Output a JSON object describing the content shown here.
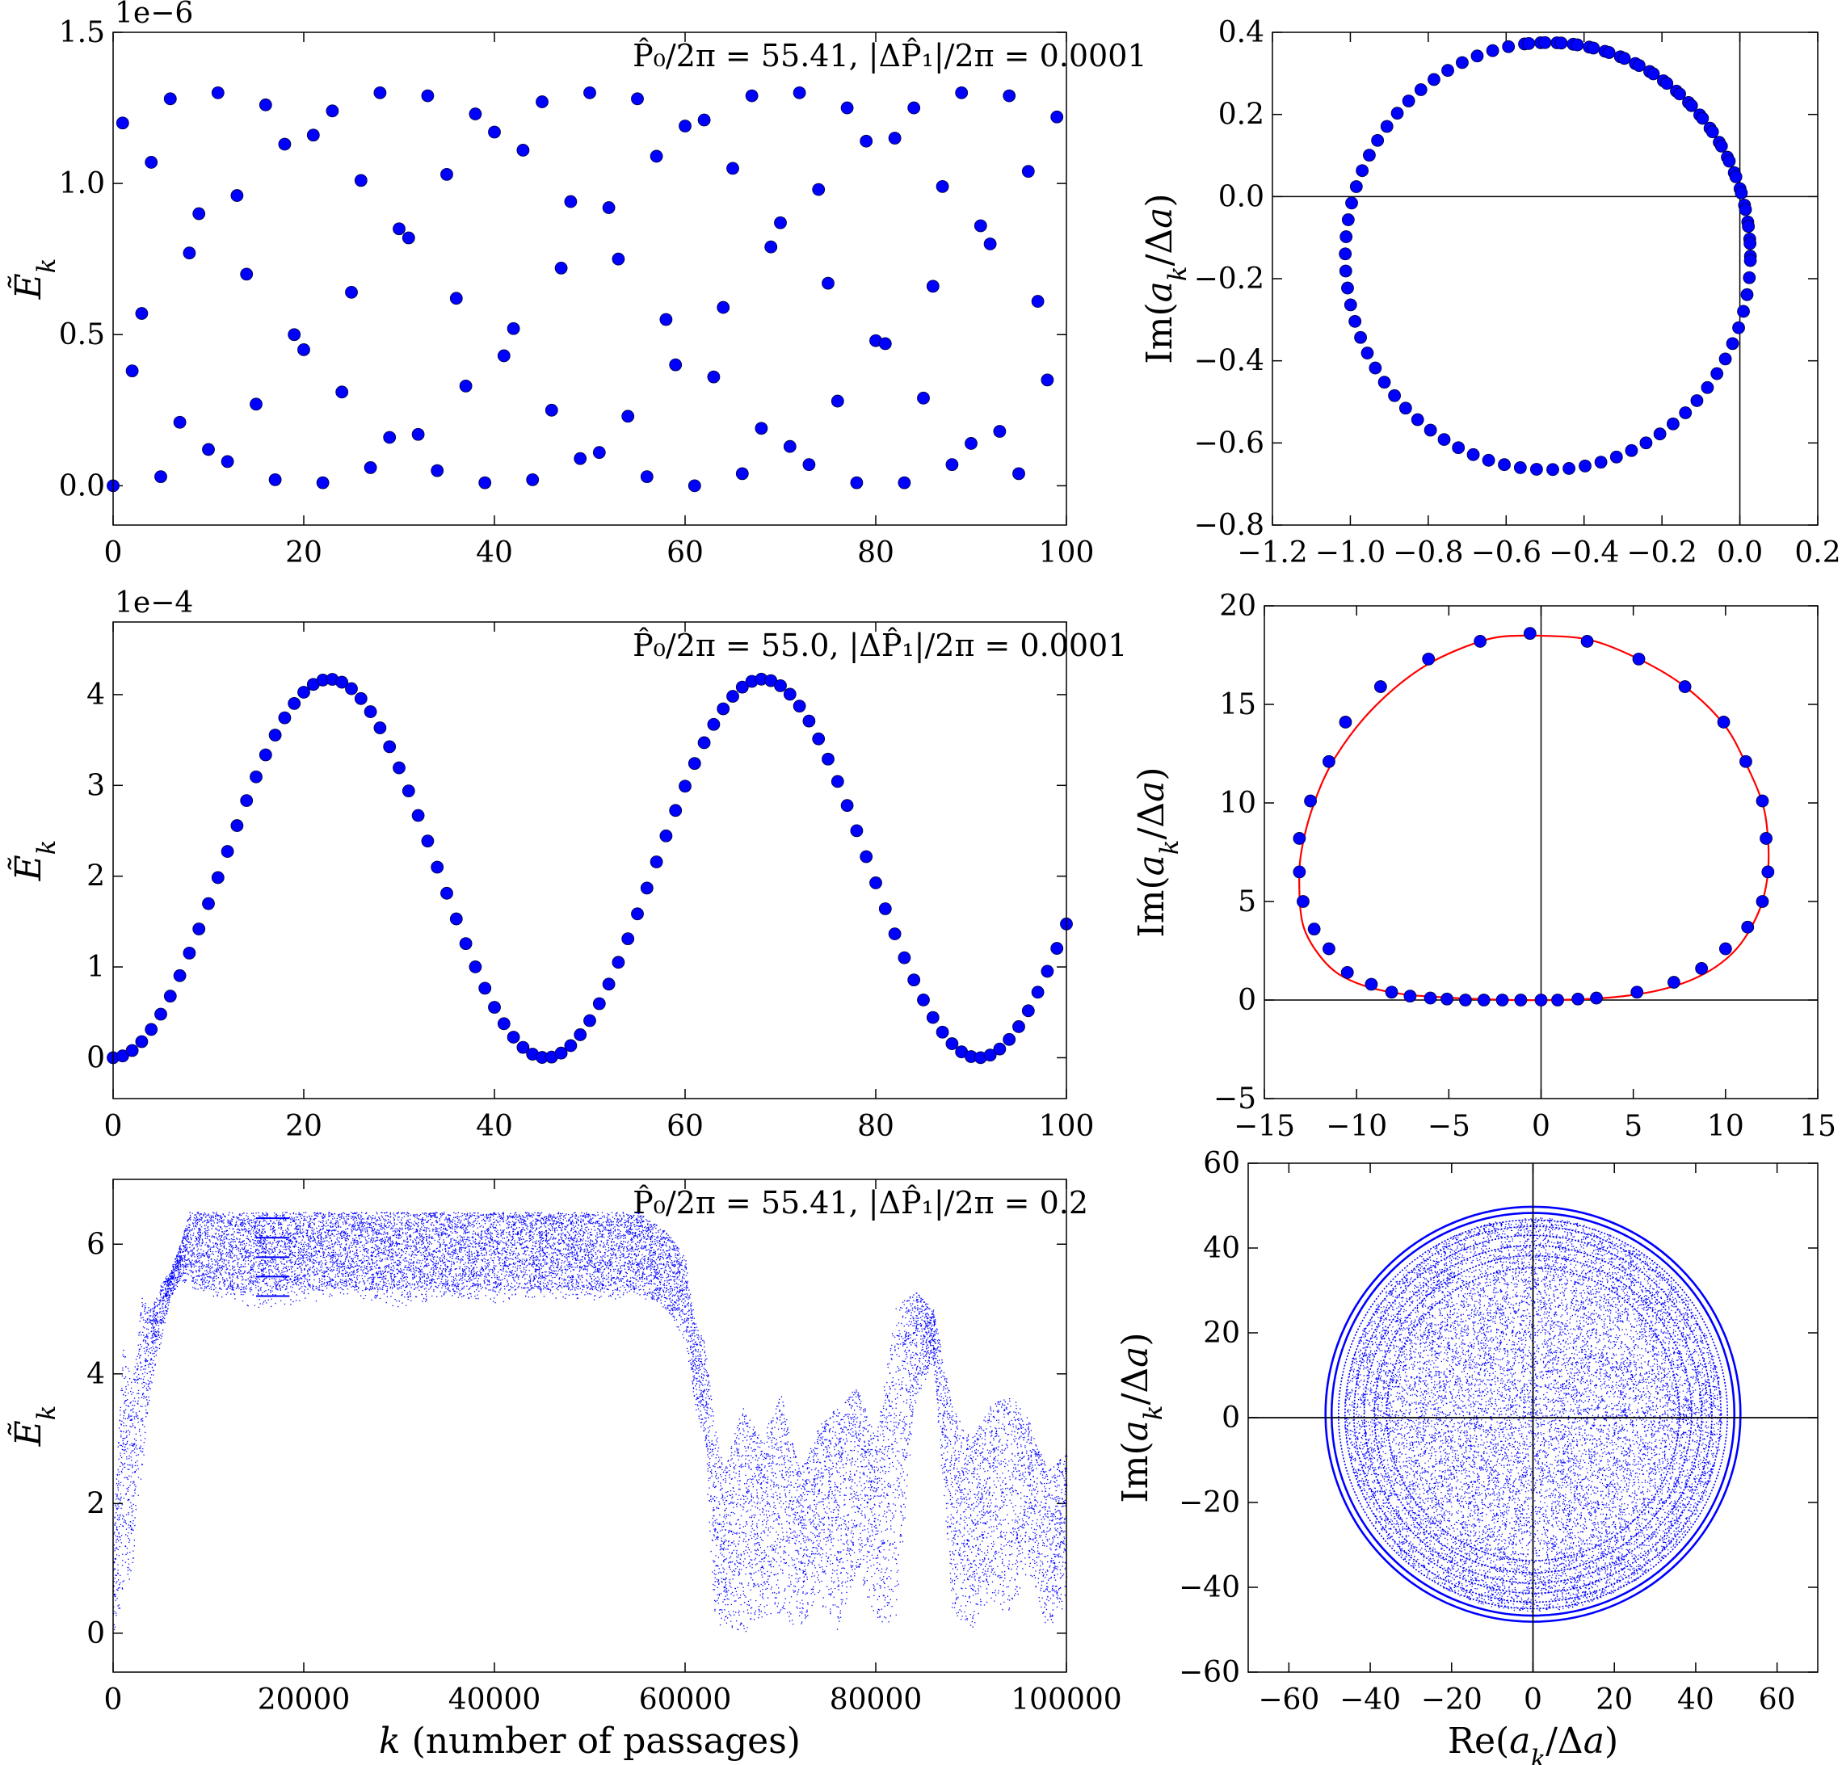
{
  "colors": {
    "points": "#0000ff",
    "curve": "#ff0000",
    "axes": "#000000",
    "background": "#ffffff"
  },
  "chart_data": [
    {
      "id": "energy-top",
      "type": "scatter",
      "annotation": "P̂₀/2π = 55.41, |ΔP̂₁|/2π = 0.0001",
      "offset_text": "1e−6",
      "xlabel": "",
      "ylabel": "Ẽ_k",
      "xlim": [
        0,
        100
      ],
      "ylim": [
        -0.13,
        1.5
      ],
      "xticks": [
        0,
        20,
        40,
        60,
        80,
        100
      ],
      "xtick_labels": [
        "0",
        "20",
        "40",
        "60",
        "80",
        "100"
      ],
      "yticks": [
        0,
        0.5,
        1.0,
        1.5
      ],
      "ytick_labels": [
        "0.0",
        "0.5",
        "1.0",
        "1.5"
      ],
      "series": [
        {
          "style": "dots",
          "x": [
            0,
            1,
            2,
            3,
            4,
            5,
            6,
            7,
            8,
            9,
            10,
            11,
            12,
            13,
            14,
            15,
            16,
            17,
            18,
            19,
            20,
            21,
            22,
            23,
            24,
            25,
            26,
            27,
            28,
            29,
            30,
            31,
            32,
            33,
            34,
            35,
            36,
            37,
            38,
            39,
            40,
            41,
            42,
            43,
            44,
            45,
            46,
            47,
            48,
            49,
            50,
            51,
            52,
            53,
            54,
            55,
            56,
            57,
            58,
            59,
            60,
            61,
            62,
            63,
            64,
            65,
            66,
            67,
            68,
            69,
            70,
            71,
            72,
            73,
            74,
            75,
            76,
            77,
            78,
            79,
            80,
            81,
            82,
            83,
            84,
            85,
            86,
            87,
            88,
            89,
            90,
            91,
            92,
            93,
            94,
            95,
            96,
            97,
            98,
            99
          ],
          "y": [
            0.0,
            1.2,
            0.38,
            0.57,
            1.07,
            0.03,
            1.28,
            0.21,
            0.77,
            0.9,
            0.12,
            1.3,
            0.08,
            0.96,
            0.7,
            0.27,
            1.26,
            0.02,
            1.13,
            0.5,
            0.45,
            1.16,
            0.01,
            1.24,
            0.31,
            0.64,
            1.01,
            0.06,
            1.3,
            0.16,
            0.85,
            0.82,
            0.17,
            1.29,
            0.05,
            1.03,
            0.62,
            0.33,
            1.23,
            0.01,
            1.17,
            0.43,
            0.52,
            1.11,
            0.02,
            1.27,
            0.25,
            0.72,
            0.94,
            0.09,
            1.3,
            0.11,
            0.92,
            0.75,
            0.23,
            1.28,
            0.03,
            1.09,
            0.55,
            0.4,
            1.19,
            0.0,
            1.21,
            0.36,
            0.59,
            1.05,
            0.04,
            1.29,
            0.19,
            0.79,
            0.87,
            0.13,
            1.3,
            0.07,
            0.98,
            0.67,
            0.28,
            1.25,
            0.01,
            1.14,
            0.48,
            0.47,
            1.15,
            0.01,
            1.25,
            0.29,
            0.66,
            0.99,
            0.07,
            1.3,
            0.14,
            0.86,
            0.8,
            0.18,
            1.29,
            0.04,
            1.04,
            0.61,
            0.35,
            1.22
          ]
        }
      ]
    },
    {
      "id": "phase-top",
      "type": "scatter",
      "xlabel": "",
      "ylabel": "Im(a_k/Δa)",
      "xlim": [
        -1.2,
        0.2
      ],
      "ylim": [
        -0.8,
        0.4
      ],
      "xticks": [
        -1.2,
        -1.0,
        -0.8,
        -0.6,
        -0.4,
        -0.2,
        0.0,
        0.2
      ],
      "xtick_labels": [
        "−1.2",
        "−1.0",
        "−0.8",
        "−0.6",
        "−0.4",
        "−0.2",
        "0.0",
        "0.2"
      ],
      "yticks": [
        -0.8,
        -0.6,
        -0.4,
        -0.2,
        0.0,
        0.2,
        0.4
      ],
      "ytick_labels": [
        "−0.8",
        "−0.6",
        "−0.4",
        "−0.2",
        "0.0",
        "0.2",
        "0.4"
      ],
      "circle": {
        "center": [
          -0.493,
          -0.145
        ],
        "radius": 0.52,
        "count": 100,
        "step_deg": 4.6
      }
    },
    {
      "id": "energy-middle",
      "type": "scatter",
      "annotation": "P̂₀/2π = 55.0, |ΔP̂₁|/2π = 0.0001",
      "offset_text": "1e−4",
      "xlabel": "",
      "ylabel": "Ẽ_k",
      "xlim": [
        0,
        100
      ],
      "ylim": [
        -0.45,
        4.8
      ],
      "xticks": [
        0,
        20,
        40,
        60,
        80,
        100
      ],
      "xtick_labels": [
        "0",
        "20",
        "40",
        "60",
        "80",
        "100"
      ],
      "yticks": [
        0,
        1,
        2,
        3,
        4
      ],
      "ytick_labels": [
        "0",
        "1",
        "2",
        "3",
        "4"
      ],
      "model": {
        "amplitude": 4.17,
        "period": 45.4,
        "count": 101
      }
    },
    {
      "id": "phase-middle",
      "type": "scatter",
      "xlabel": "",
      "ylabel": "Im(a_k/Δa)",
      "xlim": [
        -15,
        15
      ],
      "ylim": [
        -5,
        20
      ],
      "xticks": [
        -15,
        -10,
        -5,
        0,
        5,
        10,
        15
      ],
      "xtick_labels": [
        "−15",
        "−10",
        "−5",
        "0",
        "5",
        "10",
        "15"
      ],
      "yticks": [
        -5,
        0,
        5,
        10,
        15,
        20
      ],
      "ytick_labels": [
        "−5",
        "0",
        "5",
        "10",
        "15",
        "20"
      ],
      "curve": {
        "x": [
          -0.5,
          2.5,
          5.3,
          7.8,
          9.9,
          11.1,
          12.0,
          12.3,
          12.3,
          12.0,
          11.4,
          10.6,
          9.5,
          8.1,
          6.4,
          4.5,
          2.5,
          0.5,
          -1.5,
          -3.5,
          -5.5,
          -7.5,
          -9.5,
          -11.1,
          -12.2,
          -12.9,
          -13.1,
          -13.0,
          -12.3,
          -11.1,
          -9.0,
          -6.2,
          -2.9,
          -0.5
        ],
        "y": [
          18.5,
          18.3,
          17.3,
          15.9,
          14.0,
          12.0,
          10.0,
          8.2,
          6.5,
          5.0,
          3.7,
          2.6,
          1.7,
          1.0,
          0.5,
          0.2,
          0.05,
          0.0,
          0.0,
          0.05,
          0.15,
          0.3,
          0.7,
          1.4,
          2.5,
          3.8,
          5.5,
          7.5,
          10.0,
          12.4,
          14.9,
          17.0,
          18.3,
          18.5
        ]
      },
      "points": {
        "x": [
          -0.6,
          2.5,
          5.3,
          7.8,
          9.9,
          11.1,
          12.0,
          12.2,
          12.3,
          12.0,
          11.2,
          10.0,
          8.7,
          7.2,
          5.2,
          3.0,
          2.0,
          0.9,
          0.0,
          -1.1,
          -2.1,
          -3.1,
          -4.1,
          -5.1,
          -6.0,
          -7.1,
          -8.1,
          -9.2,
          -10.5,
          -11.5,
          -12.3,
          -12.9,
          -13.1,
          -13.1,
          -12.5,
          -11.5,
          -10.6,
          -8.7,
          -6.1,
          -3.3
        ],
        "y": [
          18.6,
          18.2,
          17.3,
          15.9,
          14.1,
          12.1,
          10.1,
          8.2,
          6.5,
          5.0,
          3.7,
          2.6,
          1.6,
          0.9,
          0.4,
          0.1,
          0.05,
          0.0,
          0.0,
          0.0,
          0.0,
          0.0,
          0.0,
          0.05,
          0.1,
          0.2,
          0.4,
          0.8,
          1.4,
          2.6,
          3.6,
          5.0,
          6.5,
          8.2,
          10.1,
          12.1,
          14.1,
          15.9,
          17.3,
          18.2
        ]
      }
    },
    {
      "id": "energy-bottom",
      "type": "scatter",
      "annotation": "P̂₀/2π = 55.41, |ΔP̂₁|/2π = 0.2",
      "xlabel": "k (number of passages)",
      "ylabel": "Ẽ_k",
      "xlim": [
        0,
        100000
      ],
      "ylim": [
        -0.6,
        7.0
      ],
      "xticks": [
        0,
        20000,
        40000,
        60000,
        80000,
        100000
      ],
      "xtick_labels": [
        "0",
        "20000",
        "40000",
        "60000",
        "80000",
        "100000"
      ],
      "yticks": [
        0,
        2,
        4,
        6
      ],
      "ytick_labels": [
        "0",
        "2",
        "4",
        "6"
      ],
      "envelope": {
        "x": [
          0,
          1000,
          2000,
          3000,
          4000,
          5000,
          6000,
          7000,
          8000,
          10000,
          15000,
          20000,
          25000,
          30000,
          35000,
          40000,
          45000,
          50000,
          55000,
          58000,
          60000,
          61000,
          62000,
          63000,
          64000,
          66000,
          68000,
          70000,
          72000,
          74000,
          76000,
          78000,
          80000,
          82000,
          84000,
          86000,
          88000,
          90000,
          92000,
          94000,
          96000,
          98000,
          100000
        ],
        "low": [
          0.0,
          0.5,
          1.0,
          2.5,
          3.8,
          4.5,
          5.2,
          5.4,
          5.4,
          5.2,
          5.0,
          5.1,
          5.2,
          5.0,
          5.2,
          5.1,
          5.2,
          5.1,
          5.2,
          5.0,
          4.5,
          3.5,
          3.0,
          0.3,
          0.0,
          0.0,
          0.2,
          0.3,
          0.0,
          0.5,
          0.0,
          1.0,
          0.2,
          0.0,
          3.5,
          4.2,
          0.3,
          0.0,
          0.5,
          0.2,
          1.0,
          0.0,
          0.5
        ],
        "high": [
          1.5,
          4.5,
          3.8,
          5.2,
          5.0,
          5.4,
          5.6,
          6.0,
          6.5,
          6.5,
          6.5,
          6.5,
          6.5,
          6.5,
          6.5,
          6.5,
          6.5,
          6.5,
          6.5,
          6.2,
          5.8,
          4.8,
          4.5,
          3.3,
          2.5,
          3.5,
          3.0,
          3.7,
          2.5,
          3.2,
          3.5,
          3.8,
          3.0,
          5.0,
          5.3,
          5.0,
          3.5,
          3.0,
          3.5,
          3.7,
          3.3,
          2.5,
          2.8
        ]
      }
    },
    {
      "id": "phase-bottom",
      "type": "scatter",
      "xlabel": "Re(a_k/Δa)",
      "ylabel": "Im(a_k/Δa)",
      "xlim": [
        -70,
        70
      ],
      "ylim": [
        -60,
        60
      ],
      "xticks": [
        -60,
        -40,
        -20,
        0,
        20,
        40,
        60
      ],
      "xtick_labels": [
        "−60",
        "−40",
        "−20",
        "0",
        "20",
        "40",
        "60"
      ],
      "yticks": [
        -60,
        -40,
        -20,
        0,
        20,
        40,
        60
      ],
      "ytick_labels": [
        "−60",
        "−40",
        "−20",
        "0",
        "20",
        "40",
        "60"
      ],
      "disk": {
        "center": [
          0,
          0.8
        ],
        "radius": 50.5,
        "rings": [
          51.0,
          49.5,
          47.8,
          46.2,
          44.0,
          41.5,
          39.0,
          36.0
        ]
      }
    }
  ]
}
